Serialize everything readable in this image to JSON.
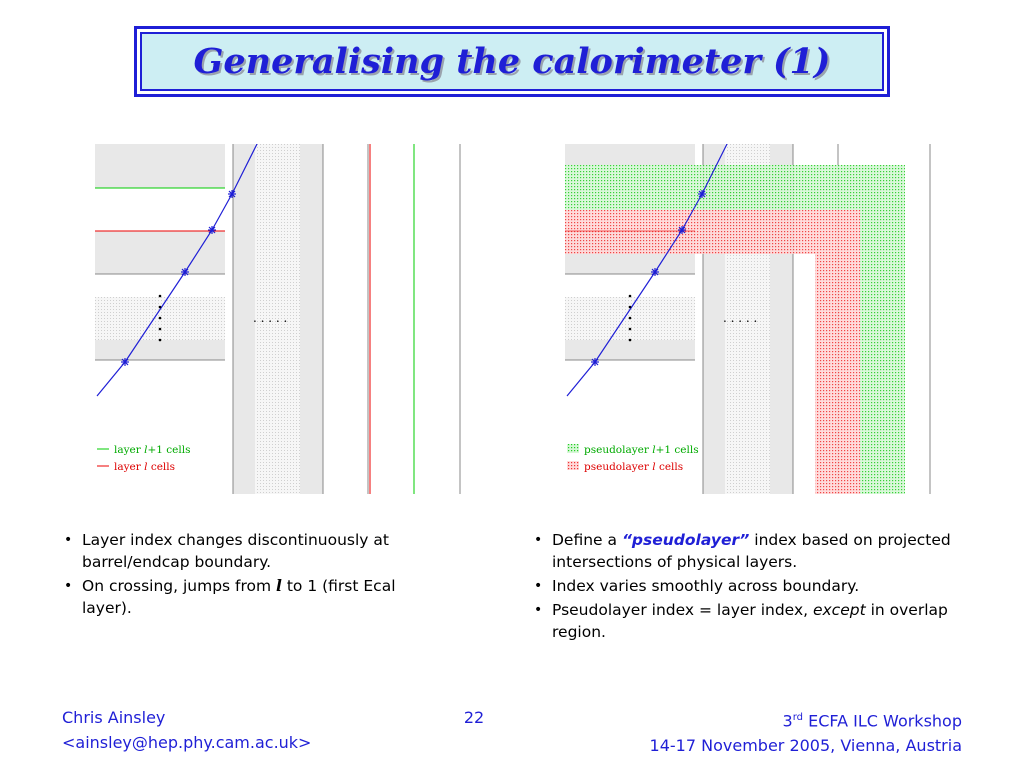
{
  "title": "Generalising the calorimeter (1)",
  "left_figure": {
    "legend": [
      {
        "text_pre": "layer ",
        "text_var": "l",
        "text_post": "+1 cells",
        "color": "#00aa00"
      },
      {
        "text_pre": "layer ",
        "text_var": "l",
        "text_post": " cells",
        "color": "#dd0000"
      }
    ],
    "ellipsis_h": ". . . . .",
    "ellipsis_v": ":"
  },
  "right_figure": {
    "legend": [
      {
        "text_pre": "pseudolayer ",
        "text_var": "l",
        "text_post": "+1 cells",
        "color": "#00aa00"
      },
      {
        "text_pre": "pseudolayer ",
        "text_var": "l",
        "text_post": " cells",
        "color": "#dd0000"
      }
    ],
    "ellipsis_h": ". . . . ."
  },
  "left_bullets": {
    "b1": "Layer index changes discontinuously at barrel/endcap boundary.",
    "b2_pre": "On crossing, jumps from ",
    "b2_var": "l",
    "b2_post": " to 1 (first Ecal layer)."
  },
  "right_bullets": {
    "b1_pre": "Define a ",
    "b1_hl": "“pseudolayer”",
    "b1_post": " index based on projected intersections of physical layers.",
    "b2": "Index varies smoothly across boundary.",
    "b3_pre": "Pseudolayer index = layer index, ",
    "b3_em": "except",
    "b3_post": " in overlap region."
  },
  "bullet_char": "•",
  "footer": {
    "author": "Chris Ainsley",
    "email": "<ainsley@hep.phy.cam.ac.uk>",
    "page": "22",
    "event_pre": "3",
    "event_sup": "rd",
    "event_post": " ECFA ILC Workshop",
    "event_date": "14-17 November 2005, Vienna, Austria"
  },
  "colors": {
    "accent": "#1f1fd6",
    "title_bg": "#cdeef3",
    "layer_red": "#dd0000",
    "layer_green": "#00aa00",
    "track_blue": "#1f1fd6"
  }
}
